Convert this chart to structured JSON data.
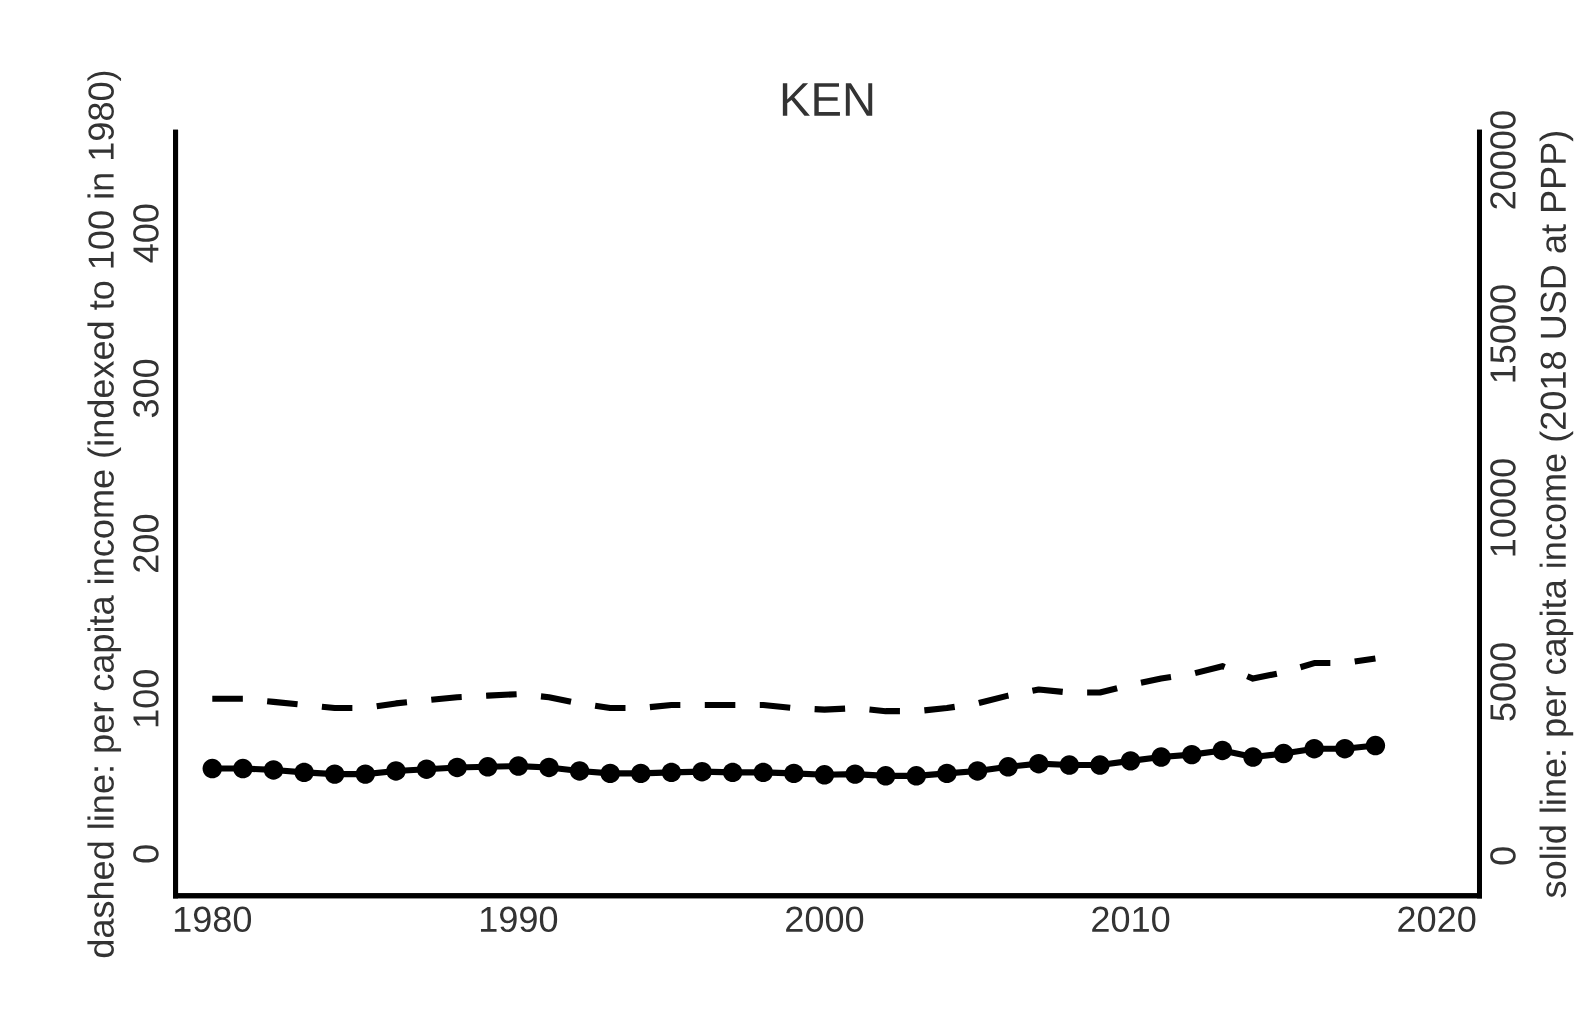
{
  "chart_data": {
    "type": "line",
    "title": "KEN",
    "ylabel": "dashed line: per capita income (indexed to 100 in 1980)",
    "y2label": "solid line: per capita income (2018 USD at PPP)",
    "x": [
      1980,
      1981,
      1982,
      1983,
      1984,
      1985,
      1986,
      1987,
      1988,
      1989,
      1990,
      1991,
      1992,
      1993,
      1994,
      1995,
      1996,
      1997,
      1998,
      1999,
      2000,
      2001,
      2002,
      2003,
      2004,
      2005,
      2006,
      2007,
      2008,
      2009,
      2010,
      2011,
      2012,
      2013,
      2014,
      2015,
      2016,
      2017,
      2018
    ],
    "series": [
      {
        "color": "#000000",
        "line_style": "dashed",
        "marker": "none",
        "values": [
          100,
          100,
          98,
          96,
          94,
          94,
          97,
          99,
          101,
          102,
          103,
          101,
          97,
          94,
          94,
          96,
          96,
          96,
          96,
          94,
          93,
          94,
          92,
          92,
          94,
          97,
          102,
          106,
          104,
          104,
          109,
          113,
          116,
          121,
          113,
          117,
          123,
          123,
          126
        ]
      },
      {
        "color": "#000000",
        "line_style": "solid",
        "marker": "circle",
        "axis": "y2",
        "values": [
          2510,
          2510,
          2470,
          2400,
          2350,
          2350,
          2440,
          2490,
          2540,
          2560,
          2580,
          2540,
          2440,
          2370,
          2370,
          2400,
          2420,
          2400,
          2400,
          2370,
          2330,
          2350,
          2300,
          2300,
          2370,
          2440,
          2560,
          2650,
          2610,
          2610,
          2730,
          2840,
          2910,
          3030,
          2840,
          2940,
          3080,
          3080,
          3170
        ]
      }
    ],
    "xlim": [
      1978.8,
      2021.4
    ],
    "xticks": [
      1980,
      1990,
      2000,
      2010,
      2020
    ],
    "ylim": [
      -27,
      465
    ],
    "yticks": [
      0,
      100,
      200,
      300,
      400
    ],
    "y2lim": [
      -1150,
      20800
    ],
    "y2ticks": [
      0,
      5000,
      10000,
      15000,
      20000
    ],
    "grid": false,
    "legend": false
  }
}
